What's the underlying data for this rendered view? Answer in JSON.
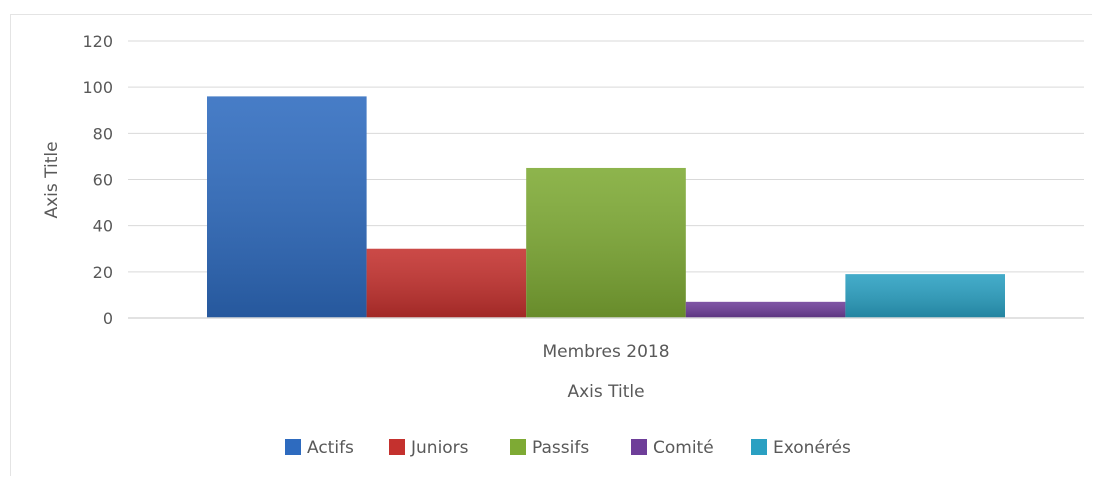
{
  "chart_data": {
    "type": "bar",
    "categories": [
      "Membres 2018"
    ],
    "series": [
      {
        "name": "Actifs",
        "values": [
          96
        ],
        "color": "#2e6bbf"
      },
      {
        "name": "Juniors",
        "values": [
          30
        ],
        "color": "#c4312e"
      },
      {
        "name": "Passifs",
        "values": [
          65
        ],
        "color": "#7eaa34"
      },
      {
        "name": "Comité",
        "values": [
          7
        ],
        "color": "#6e3e99"
      },
      {
        "name": "Exonérés",
        "values": [
          19
        ],
        "color": "#2aa0c2"
      }
    ],
    "ylim": [
      0,
      120
    ],
    "yticks": [
      "0",
      "20",
      "40",
      "60",
      "80",
      "100",
      "120"
    ],
    "xlabel": "Axis Title",
    "ylabel": "Axis Title",
    "grid": true,
    "legend_position": "bottom"
  }
}
